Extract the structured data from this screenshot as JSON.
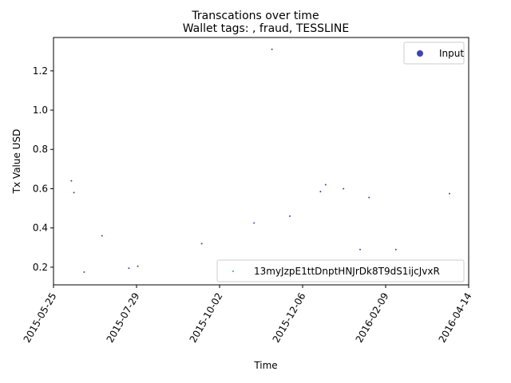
{
  "chart_data": {
    "type": "scatter",
    "title": "Transcations over time",
    "subtitle": "Wallet tags: , fraud, TESSLINE",
    "xlabel": "Time",
    "ylabel": "Tx Value USD",
    "xlim": [
      "2015-05-25",
      "2016-04-14"
    ],
    "ylim": [
      0.11,
      1.37
    ],
    "x_ticks": [
      "2015-05-25",
      "2015-07-29",
      "2015-10-02",
      "2015-12-06",
      "2016-02-09",
      "2016-04-14"
    ],
    "y_ticks": [
      "0.2",
      "0.4",
      "0.6",
      "0.8",
      "1.0",
      "1.2"
    ],
    "grid": false,
    "legends": [
      {
        "placement": "top-right",
        "entries": [
          {
            "label": "Input",
            "color": "#3b45b5"
          }
        ]
      },
      {
        "placement": "bottom-right",
        "entries": [
          {
            "label": "13myJzpE1ttDnptHNJrDk8T9dS1ijcJvxR",
            "color": "#3aa8a0"
          }
        ]
      }
    ],
    "series": [
      {
        "name": "Input",
        "color": "#3b45b5",
        "points": [
          {
            "x": "2015-06-08",
            "y": 0.64
          },
          {
            "x": "2015-06-10",
            "y": 0.58
          },
          {
            "x": "2015-06-18",
            "y": 0.175
          },
          {
            "x": "2015-07-02",
            "y": 0.36
          },
          {
            "x": "2015-07-23",
            "y": 0.195
          },
          {
            "x": "2015-07-30",
            "y": 0.205
          },
          {
            "x": "2015-09-18",
            "y": 0.32
          },
          {
            "x": "2015-10-29",
            "y": 0.425
          },
          {
            "x": "2015-11-12",
            "y": 1.31
          },
          {
            "x": "2015-11-26",
            "y": 0.46
          },
          {
            "x": "2015-12-20",
            "y": 0.585
          },
          {
            "x": "2015-12-24",
            "y": 0.62
          },
          {
            "x": "2016-01-07",
            "y": 0.6
          },
          {
            "x": "2016-01-20",
            "y": 0.29
          },
          {
            "x": "2016-01-27",
            "y": 0.555
          },
          {
            "x": "2016-02-17",
            "y": 0.29
          },
          {
            "x": "2016-03-30",
            "y": 0.575
          }
        ]
      },
      {
        "name": "13myJzpE1ttDnptHNJrDk8T9dS1ijcJvxR",
        "color": "#3aa8a0",
        "points": [
          {
            "x": "2015-10-12",
            "y": 0.18
          }
        ]
      }
    ]
  }
}
